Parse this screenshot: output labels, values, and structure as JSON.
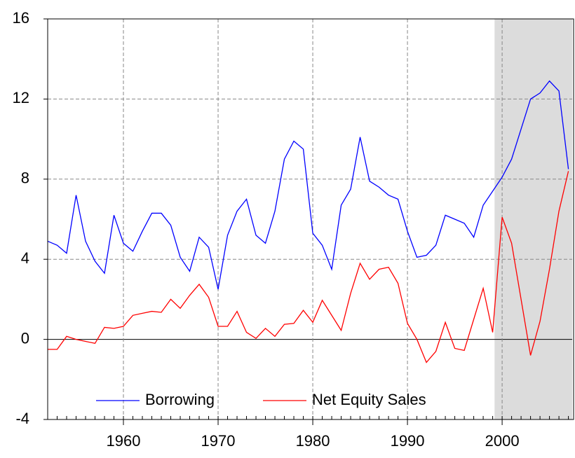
{
  "chart_data": {
    "type": "line",
    "x": [
      1952,
      1953,
      1954,
      1955,
      1956,
      1957,
      1958,
      1959,
      1960,
      1961,
      1962,
      1963,
      1964,
      1965,
      1966,
      1967,
      1968,
      1969,
      1970,
      1971,
      1972,
      1973,
      1974,
      1975,
      1976,
      1977,
      1978,
      1979,
      1980,
      1981,
      1982,
      1983,
      1984,
      1985,
      1986,
      1987,
      1988,
      1989,
      1990,
      1991,
      1992,
      1993,
      1994,
      1995,
      1996,
      1997,
      1998,
      1999,
      2000,
      2001,
      2002,
      2003,
      2004,
      2005,
      2006,
      2007
    ],
    "series": [
      {
        "name": "Borrowing",
        "color": "#0000ff",
        "values": [
          4.9,
          4.7,
          4.3,
          7.2,
          4.9,
          3.9,
          3.3,
          6.2,
          4.8,
          4.4,
          5.4,
          6.3,
          6.3,
          5.7,
          4.1,
          3.4,
          5.1,
          4.6,
          2.5,
          5.2,
          6.4,
          7.0,
          5.2,
          4.8,
          6.4,
          9.0,
          9.9,
          9.5,
          5.3,
          4.7,
          3.5,
          6.7,
          7.5,
          10.1,
          7.9,
          7.6,
          7.2,
          7.0,
          5.4,
          4.1,
          4.2,
          4.7,
          6.2,
          6.0,
          5.8,
          5.1,
          6.7,
          7.4,
          8.1,
          9.0,
          10.5,
          12.0,
          12.3,
          12.9,
          12.4,
          8.5
        ]
      },
      {
        "name": "Net Equity Sales",
        "color": "#ff0000",
        "values": [
          -0.5,
          -0.5,
          0.15,
          0,
          -0.1,
          -0.2,
          0.6,
          0.55,
          0.65,
          1.2,
          1.3,
          1.4,
          1.35,
          2.0,
          1.55,
          2.2,
          2.75,
          2.1,
          0.65,
          0.65,
          1.4,
          0.35,
          0.05,
          0.55,
          0.15,
          0.75,
          0.8,
          1.45,
          0.85,
          1.95,
          1.2,
          0.45,
          2.3,
          3.8,
          3.0,
          3.5,
          3.6,
          2.8,
          0.8,
          0,
          -1.15,
          -0.6,
          0.85,
          -0.45,
          -0.55,
          1.0,
          2.55,
          0.35,
          6.1,
          4.8,
          2.0,
          -0.8,
          0.9,
          3.5,
          6.4,
          8.4
        ]
      }
    ],
    "xlim": [
      1952,
      2007.4
    ],
    "xticks": [
      1960,
      1970,
      1980,
      1990,
      2000
    ],
    "ylim": [
      -4,
      16
    ],
    "yticks": [
      -4,
      0,
      4,
      8,
      12,
      16
    ],
    "shaded_x": [
      1999.2,
      2007.4
    ],
    "grid": true,
    "legend": "lower center"
  }
}
